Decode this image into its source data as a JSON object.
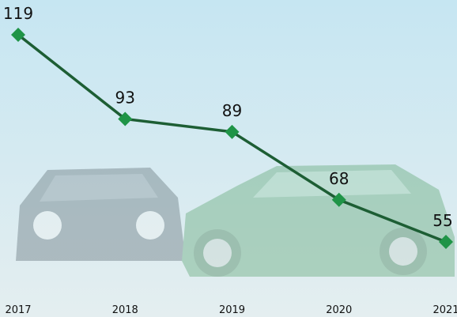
{
  "chart_data": {
    "type": "line",
    "categories": [
      "2017",
      "2018",
      "2019",
      "2020",
      "2021"
    ],
    "values": [
      119,
      93,
      89,
      68,
      55
    ],
    "line_color": "#1d5e34",
    "marker_color": "#1f9447"
  }
}
